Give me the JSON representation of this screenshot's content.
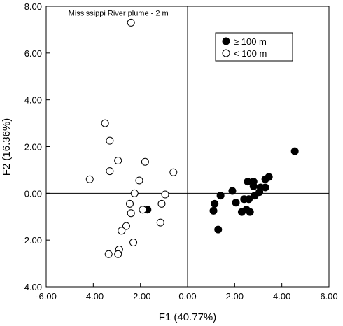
{
  "chart_data": {
    "type": "scatter",
    "xlabel": "F1 (40.77%)",
    "ylabel": "F2 (16.36%)",
    "xlim": [
      -6,
      6
    ],
    "ylim": [
      -4,
      8
    ],
    "x_ticks": [
      "-6.00",
      "-4.00",
      "-2.00",
      "0.00",
      "2.00",
      "4.00",
      "6.00"
    ],
    "y_ticks": [
      "-4.00",
      "-2.00",
      "0.00",
      "2.00",
      "4.00",
      "6.00",
      "8.00"
    ],
    "x_tick_values": [
      -6,
      -4,
      -2,
      0,
      2,
      4,
      6
    ],
    "y_tick_values": [
      -4,
      -2,
      0,
      2,
      4,
      6,
      8
    ],
    "reference_lines": {
      "x": 0,
      "y": 0
    },
    "legend_position": "top-right",
    "annotation": {
      "text": "Mississippi River plume - 2 m",
      "x": -2.4,
      "y": 7.3
    },
    "series": [
      {
        "name": "≥ 100 m",
        "marker": "filled-circle",
        "color": "#000000",
        "points": [
          {
            "x": 4.55,
            "y": 1.8
          },
          {
            "x": 3.45,
            "y": 0.7
          },
          {
            "x": 3.3,
            "y": 0.6
          },
          {
            "x": 3.3,
            "y": 0.25
          },
          {
            "x": 3.1,
            "y": 0.25
          },
          {
            "x": 3.05,
            "y": 0.05
          },
          {
            "x": 2.8,
            "y": 0.5
          },
          {
            "x": 2.8,
            "y": 0.3
          },
          {
            "x": 2.55,
            "y": 0.5
          },
          {
            "x": 1.9,
            "y": 0.1
          },
          {
            "x": 1.4,
            "y": -0.1
          },
          {
            "x": 1.15,
            "y": -0.45
          },
          {
            "x": 1.1,
            "y": -0.75
          },
          {
            "x": 1.3,
            "y": -1.55
          },
          {
            "x": 2.3,
            "y": -0.8
          },
          {
            "x": 2.4,
            "y": -0.25
          },
          {
            "x": 2.6,
            "y": -0.25
          },
          {
            "x": 2.5,
            "y": -0.7
          },
          {
            "x": 2.65,
            "y": -0.8
          },
          {
            "x": 2.05,
            "y": -0.4
          },
          {
            "x": 2.85,
            "y": -0.1
          },
          {
            "x": -1.7,
            "y": -0.7
          }
        ]
      },
      {
        "name": "< 100 m",
        "marker": "open-circle",
        "color": "#000000",
        "points": [
          {
            "x": -2.4,
            "y": 7.3
          },
          {
            "x": -3.5,
            "y": 3.0
          },
          {
            "x": -3.3,
            "y": 2.25
          },
          {
            "x": -2.95,
            "y": 1.4
          },
          {
            "x": -1.8,
            "y": 1.35
          },
          {
            "x": -3.3,
            "y": 0.95
          },
          {
            "x": -0.6,
            "y": 0.9
          },
          {
            "x": -4.15,
            "y": 0.6
          },
          {
            "x": -2.05,
            "y": 0.55
          },
          {
            "x": -2.25,
            "y": 0.0
          },
          {
            "x": -0.95,
            "y": -0.05
          },
          {
            "x": -2.45,
            "y": -0.45
          },
          {
            "x": -1.1,
            "y": -0.45
          },
          {
            "x": -1.9,
            "y": -0.7
          },
          {
            "x": -2.4,
            "y": -0.85
          },
          {
            "x": -1.15,
            "y": -1.25
          },
          {
            "x": -2.6,
            "y": -1.4
          },
          {
            "x": -2.8,
            "y": -1.6
          },
          {
            "x": -2.3,
            "y": -2.1
          },
          {
            "x": -2.9,
            "y": -2.4
          },
          {
            "x": -3.35,
            "y": -2.6
          },
          {
            "x": -2.95,
            "y": -2.6
          }
        ]
      }
    ]
  }
}
